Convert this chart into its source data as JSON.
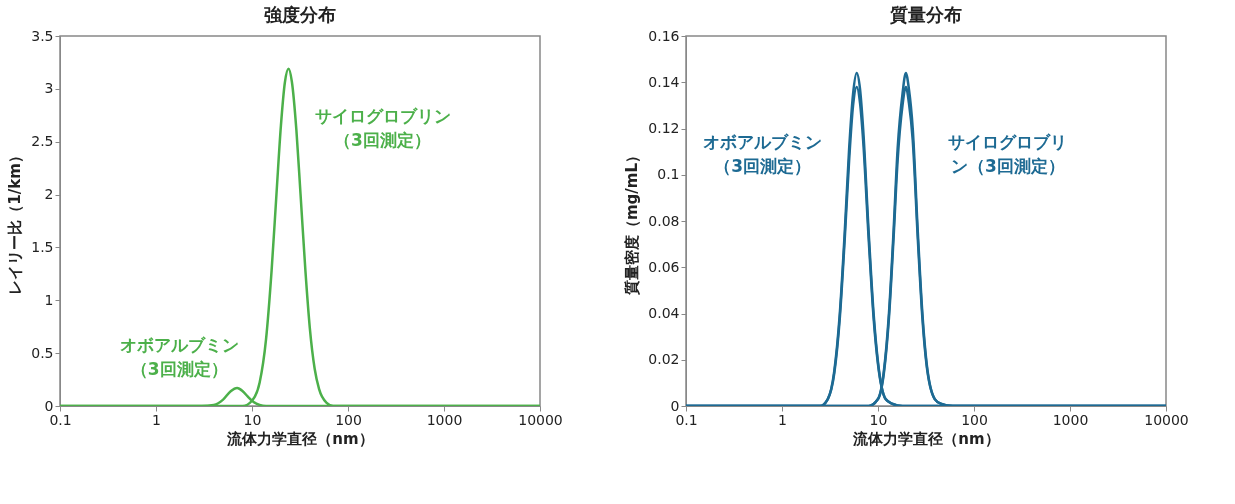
{
  "chart_data": [
    {
      "type": "line",
      "title": "強度分布",
      "xlabel": "流体力学直径（nm）",
      "ylabel": "レイリー比（1/km）",
      "log": "x",
      "grid": false,
      "xlim": [
        0.1,
        10000
      ],
      "xticks": [
        0.1,
        1,
        10,
        100,
        1000,
        10000
      ],
      "ylim": [
        0,
        3.5
      ],
      "yticks": [
        0,
        0.5,
        1,
        1.5,
        2,
        2.5,
        3,
        3.5
      ],
      "annotations": [
        "オボアルブミン（3回測定）",
        "サイログロブリン（3回測定）"
      ],
      "series": [
        {
          "color": "#4cb04a",
          "x": [
            0.1,
            3,
            4,
            5,
            6,
            7,
            8,
            9,
            10,
            12,
            14,
            10000
          ],
          "values": [
            0,
            0,
            0.01,
            0.06,
            0.14,
            0.17,
            0.14,
            0.09,
            0.05,
            0.01,
            0,
            0
          ]
        },
        {
          "color": "#4cb04a",
          "x": [
            0.1,
            8,
            10,
            12,
            14,
            16,
            18,
            20,
            22,
            24,
            26,
            29,
            32,
            36,
            40,
            45,
            50,
            60,
            70,
            10000
          ],
          "values": [
            0,
            0,
            0.05,
            0.22,
            0.63,
            1.28,
            2.01,
            2.65,
            3.06,
            3.19,
            3.07,
            2.61,
            2.01,
            1.28,
            0.74,
            0.35,
            0.16,
            0.03,
            0,
            0
          ]
        }
      ]
    },
    {
      "type": "line",
      "title": "質量分布",
      "xlabel": "流体力学直径（nm）",
      "ylabel": "質量密度（mg/mL）",
      "log": "x",
      "grid": false,
      "xlim": [
        0.1,
        10000
      ],
      "xticks": [
        0.1,
        1,
        10,
        100,
        1000,
        10000
      ],
      "ylim": [
        0,
        0.16
      ],
      "yticks": [
        0,
        0.02,
        0.04,
        0.06,
        0.08,
        0.1,
        0.12,
        0.14,
        0.16
      ],
      "annotations": [
        "オボアルブミン（3回測定）",
        "サイログロブリン（3回測定）"
      ],
      "series": [
        {
          "color": "#1d6a93",
          "x": [
            0.1,
            2.5,
            3,
            3.5,
            4,
            4.5,
            5,
            5.5,
            6,
            6.5,
            7,
            8,
            9,
            10,
            12,
            14,
            18,
            10000
          ],
          "values": [
            0,
            0,
            0.003,
            0.015,
            0.04,
            0.075,
            0.111,
            0.135,
            0.144,
            0.137,
            0.12,
            0.075,
            0.04,
            0.019,
            0.003,
            0.001,
            0,
            0
          ]
        },
        {
          "color": "#1d6a93",
          "x": [
            0.1,
            2.5,
            3,
            3.5,
            4,
            4.5,
            5,
            5.5,
            6,
            6.5,
            7,
            8,
            9,
            10,
            12,
            14,
            18,
            10000
          ],
          "values": [
            0,
            0,
            0.003,
            0.014,
            0.038,
            0.072,
            0.106,
            0.13,
            0.138,
            0.131,
            0.115,
            0.072,
            0.038,
            0.018,
            0.003,
            0.001,
            0,
            0
          ]
        },
        {
          "color": "#1d6a93",
          "x": [
            0.1,
            8,
            10,
            11.5,
            13,
            14.5,
            16,
            18,
            19.5,
            21,
            23,
            26,
            29,
            32,
            39,
            45,
            60,
            10000
          ],
          "values": [
            0,
            0,
            0.003,
            0.015,
            0.04,
            0.075,
            0.111,
            0.135,
            0.144,
            0.137,
            0.12,
            0.075,
            0.04,
            0.019,
            0.003,
            0.001,
            0,
            0
          ]
        },
        {
          "color": "#1d6a93",
          "x": [
            0.1,
            8,
            10,
            11.5,
            13,
            14.5,
            16,
            18,
            19.5,
            21,
            23,
            26,
            29,
            32,
            39,
            45,
            60,
            10000
          ],
          "values": [
            0,
            0,
            0.003,
            0.014,
            0.038,
            0.072,
            0.106,
            0.13,
            0.138,
            0.131,
            0.115,
            0.072,
            0.038,
            0.018,
            0.003,
            0.001,
            0,
            0
          ]
        }
      ]
    }
  ]
}
